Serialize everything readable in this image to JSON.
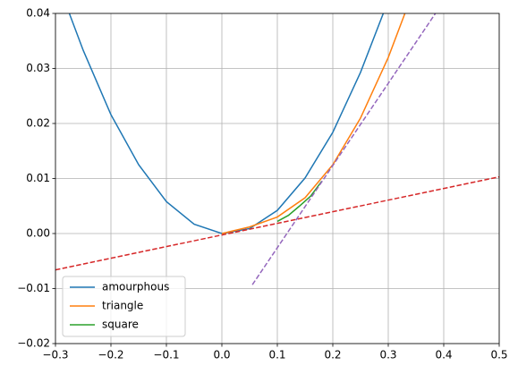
{
  "chart_data": {
    "type": "line",
    "series": [
      {
        "name": "amourphous",
        "color": "#1f77b4",
        "style": "solid",
        "x": [
          -0.275,
          -0.25,
          -0.2,
          -0.15,
          -0.1,
          -0.05,
          0,
          0.05,
          0.1,
          0.15,
          0.2,
          0.25,
          0.291
        ],
        "values": [
          0.04,
          0.0333,
          0.0216,
          0.0125,
          0.0058,
          0.0017,
          0.0,
          0.0009,
          0.0042,
          0.0101,
          0.0184,
          0.0293,
          0.04
        ]
      },
      {
        "name": "triangle",
        "color": "#ff7f0e",
        "style": "solid",
        "x": [
          0,
          0.05,
          0.1,
          0.15,
          0.2,
          0.25,
          0.3,
          0.33
        ],
        "values": [
          0,
          0.0012,
          0.003,
          0.0065,
          0.0125,
          0.021,
          0.032,
          0.04
        ]
      },
      {
        "name": "square",
        "color": "#2ca02c",
        "style": "solid",
        "x": [
          0.1,
          0.12,
          0.14,
          0.16,
          0.18
        ],
        "values": [
          0.0022,
          0.0033,
          0.005,
          0.0068,
          0.0095
        ]
      },
      {
        "color": "#d62728",
        "style": "dashed",
        "x": [
          -0.3,
          0.5
        ],
        "values": [
          -0.0066,
          0.0103
        ]
      },
      {
        "color": "#9467bd",
        "style": "dashed",
        "x": [
          0.055,
          0.385
        ],
        "values": [
          -0.0093,
          0.04
        ]
      }
    ],
    "xlim": [
      -0.3,
      0.5
    ],
    "xticks": [
      {
        "value": -0.3,
        "label": "−0.3"
      },
      {
        "value": -0.2,
        "label": "−0.2"
      },
      {
        "value": -0.1,
        "label": "−0.1"
      },
      {
        "value": 0,
        "label": "0.0"
      },
      0.1,
      0.2,
      0.3,
      0.4,
      0.5
    ],
    "ylim": [
      -0.02,
      0.04
    ],
    "yticks": [
      {
        "value": -0.02,
        "label": "−0.02"
      },
      {
        "value": -0.01,
        "label": "−0.01"
      },
      {
        "value": 0,
        "label": "0.00"
      },
      0.01,
      0.02,
      0.03,
      0.04
    ],
    "grid": true,
    "legend": "lower left"
  }
}
